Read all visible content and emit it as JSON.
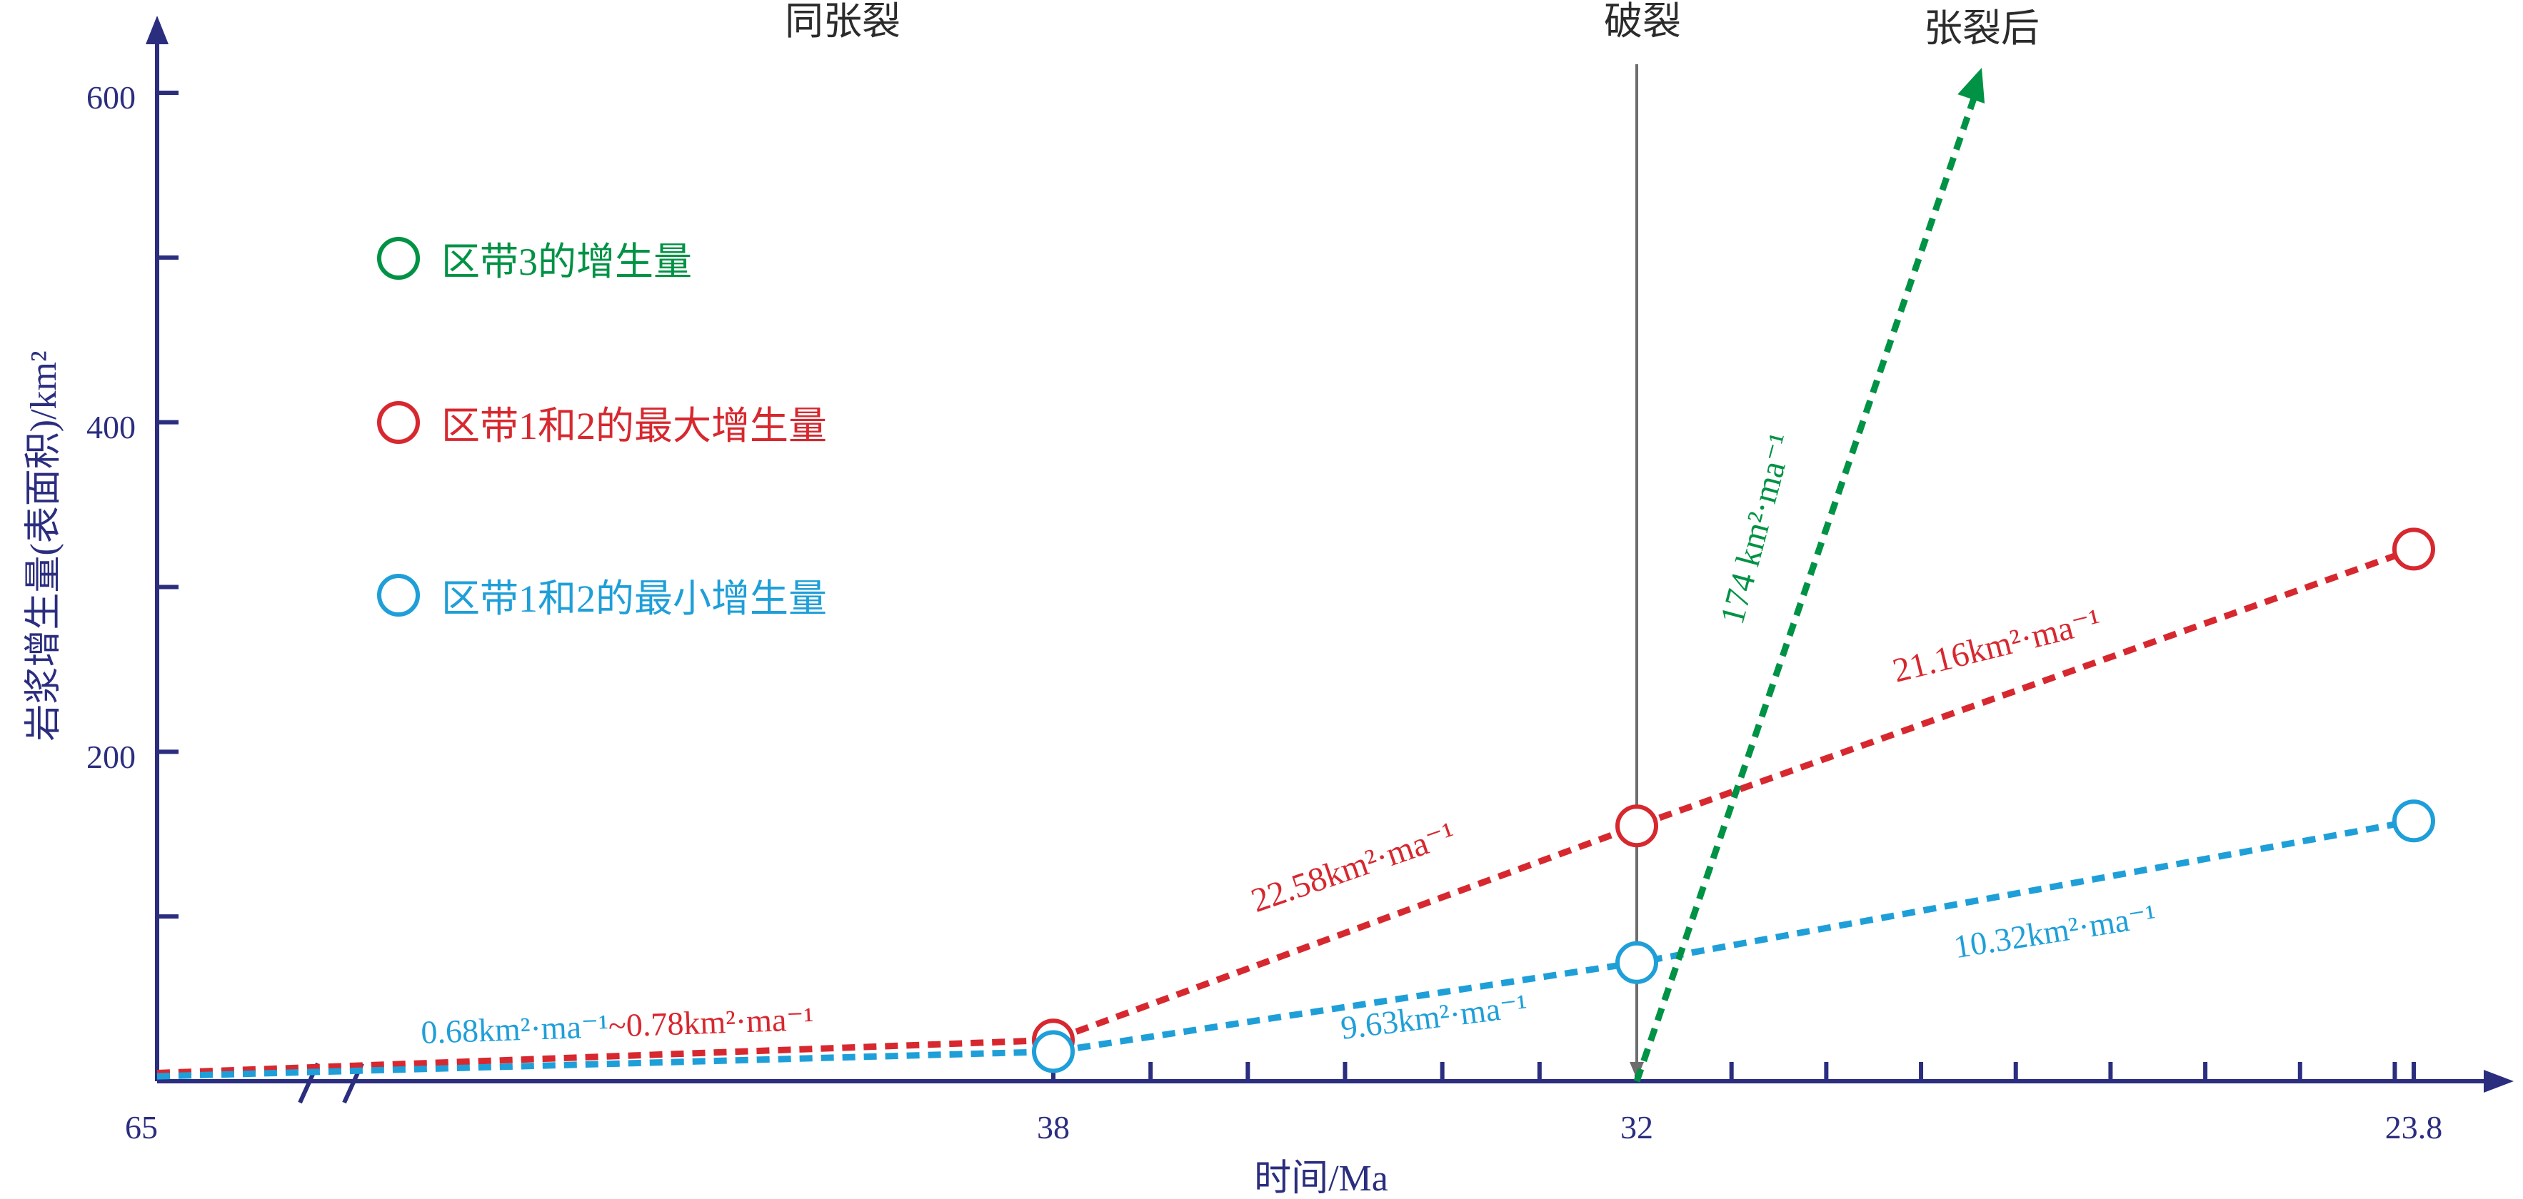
{
  "chart_data": {
    "type": "line",
    "ylabel": "岩浆增生量(表面积)/km²",
    "xlabel": "时间/Ma",
    "x_ticks": [
      "65",
      "38",
      "32",
      "23.8"
    ],
    "y_ticks": [
      "200",
      "400",
      "600"
    ],
    "y_unlabeled_ticks": [
      100,
      300,
      500
    ],
    "ylim": [
      0,
      600
    ],
    "axis_break_between": [
      "65",
      "38"
    ],
    "phases": [
      "同张裂",
      "破裂",
      "张裂后"
    ],
    "breakup_marker_x": "32",
    "series": [
      {
        "name": "区带3的增生量",
        "color": "#009245",
        "points": [
          {
            "x": 32,
            "y": 0
          }
        ],
        "arrow_beyond": true
      },
      {
        "name": "区带1和2的最大增生量",
        "color": "#d7282f",
        "points": [
          {
            "x": 65,
            "y": 5
          },
          {
            "x": 38,
            "y": 25
          },
          {
            "x": 32,
            "y": 155
          },
          {
            "x": 23.8,
            "y": 323
          }
        ]
      },
      {
        "name": "区带1和2的最小增生量",
        "color": "#1f9fd8",
        "points": [
          {
            "x": 65,
            "y": 3
          },
          {
            "x": 38,
            "y": 18
          },
          {
            "x": 32,
            "y": 72
          },
          {
            "x": 23.8,
            "y": 158
          }
        ]
      }
    ],
    "rate_labels": {
      "early_min": "0.68km²·ma⁻¹",
      "early_sep": "~",
      "early_max": "0.78km²·ma⁻¹",
      "red_38_32": "22.58km²·ma⁻¹",
      "red_32_238": "21.16km²·ma⁻¹",
      "blue_38_32": "9.63km²·ma⁻¹",
      "blue_32_238": "10.32km²·ma⁻¹",
      "green": "174 km²·ma⁻¹"
    }
  }
}
